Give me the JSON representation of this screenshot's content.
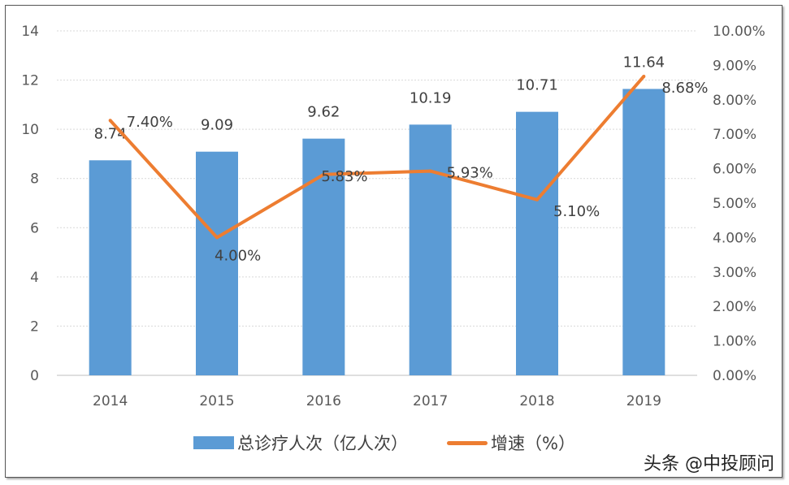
{
  "chart_data": {
    "type": "bar+line",
    "categories": [
      "2014",
      "2015",
      "2016",
      "2017",
      "2018",
      "2019"
    ],
    "series": [
      {
        "name": "总诊疗人次（亿人次）",
        "type": "bar",
        "axis": "left",
        "values": [
          8.74,
          9.09,
          9.62,
          10.19,
          10.71,
          11.64
        ],
        "labels": [
          "8.74",
          "9.09",
          "9.62",
          "10.19",
          "10.71",
          "11.64"
        ],
        "color": "#5b9bd5"
      },
      {
        "name": "增速（%）",
        "type": "line",
        "axis": "right",
        "values": [
          7.4,
          4.0,
          5.83,
          5.93,
          5.1,
          8.68
        ],
        "labels": [
          "7.40%",
          "4.00%",
          "5.83%",
          "5.93%",
          "5.10%",
          "8.68%"
        ],
        "color": "#ed7d31"
      }
    ],
    "y_left": {
      "range": [
        0,
        14
      ],
      "ticks": [
        "0",
        "2",
        "4",
        "6",
        "8",
        "10",
        "12",
        "14"
      ]
    },
    "y_right": {
      "range": [
        0,
        10
      ],
      "ticks": [
        "0.00%",
        "1.00%",
        "2.00%",
        "3.00%",
        "4.00%",
        "5.00%",
        "6.00%",
        "7.00%",
        "8.00%",
        "9.00%",
        "10.00%"
      ]
    },
    "grid": true,
    "legend": "bottom"
  },
  "legend": {
    "bar_label": "总诊疗人次（亿人次）",
    "line_label": "增速（%）"
  },
  "watermark": "头条 @中投顾问"
}
